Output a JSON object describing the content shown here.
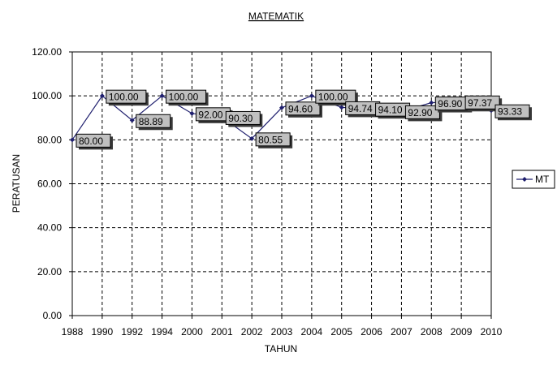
{
  "chart_data": {
    "type": "line",
    "title": "MATEMATIK",
    "xlabel": "TAHUN",
    "ylabel": "PERATUSAN",
    "categories": [
      "1988",
      "1990",
      "1992",
      "1994",
      "2000",
      "2001",
      "2002",
      "2003",
      "2004",
      "2005",
      "2006",
      "2007",
      "2008",
      "2009",
      "2010"
    ],
    "y_ticks": [
      "0.00",
      "20.00",
      "40.00",
      "60.00",
      "80.00",
      "100.00",
      "120.00"
    ],
    "ylim": [
      0,
      120
    ],
    "grid": true,
    "legend_position": "right",
    "series": [
      {
        "name": "MT",
        "color": "#1f1f6e",
        "values": [
          80.0,
          100.0,
          88.89,
          100.0,
          92.0,
          90.3,
          80.55,
          94.6,
          100.0,
          94.74,
          94.1,
          92.9,
          96.9,
          97.37,
          93.33
        ],
        "labels": [
          "80.00",
          "100.00",
          "88.89",
          "100.00",
          "92.00",
          "90.30",
          "80.55",
          "94.60",
          "100.00",
          "94.74",
          "94.10",
          "92.90",
          "96.90",
          "97.37",
          "93.33"
        ]
      }
    ]
  }
}
